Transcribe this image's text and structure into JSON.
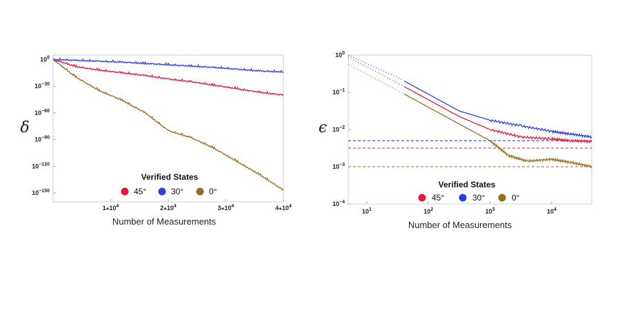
{
  "chart_data": [
    {
      "type": "line",
      "ylabel": "δ",
      "xlabel": "Number of Measurements",
      "yscale": "log",
      "ylim_exp": [
        -160,
        5
      ],
      "xlim": [
        0,
        40000
      ],
      "x_ticks": [
        {
          "value": 10000,
          "mant": "1⁎10",
          "exp": "4"
        },
        {
          "value": 20000,
          "mant": "2⁎10",
          "exp": "4"
        },
        {
          "value": 30000,
          "mant": "3⁎10",
          "exp": "4"
        },
        {
          "value": 40000,
          "mant": "4⁎10",
          "exp": "4"
        }
      ],
      "y_ticks": [
        {
          "exp_value": 0,
          "base": "10",
          "exp": "0"
        },
        {
          "exp_value": -30,
          "base": "10",
          "exp": "−30"
        },
        {
          "exp_value": -60,
          "base": "10",
          "exp": "−60"
        },
        {
          "exp_value": -90,
          "base": "10",
          "exp": "−90"
        },
        {
          "exp_value": -120,
          "base": "10",
          "exp": "−120"
        },
        {
          "exp_value": -150,
          "base": "10",
          "exp": "−150"
        }
      ],
      "series": [
        {
          "name": "45°",
          "color": "#e8163a",
          "x": [
            0,
            4000,
            8000,
            12000,
            16000,
            20000,
            24000,
            28000,
            32000,
            36000,
            40000
          ],
          "log10_y": [
            0,
            -8,
            -12,
            -15,
            -18,
            -22,
            -25,
            -29,
            -33,
            -37,
            -40
          ]
        },
        {
          "name": "30°",
          "color": "#2b3de0",
          "x": [
            0,
            4000,
            8000,
            12000,
            16000,
            20000,
            24000,
            28000,
            32000,
            36000,
            40000
          ],
          "log10_y": [
            0,
            -1,
            -2,
            -3,
            -4.5,
            -6,
            -7.5,
            -9,
            -11,
            -13,
            -14
          ]
        },
        {
          "name": "0°",
          "color": "#9a6a22",
          "x": [
            0,
            4000,
            8000,
            12000,
            16000,
            20000,
            24000,
            28000,
            32000,
            36000,
            40000
          ],
          "log10_y": [
            0,
            -20,
            -35,
            -46,
            -60,
            -80,
            -88,
            -100,
            -115,
            -130,
            -147
          ]
        }
      ],
      "legend": {
        "title": "Verified States",
        "labels": [
          "45°",
          "30°",
          "0°"
        ]
      }
    },
    {
      "type": "line",
      "ylabel": "ϵ",
      "xlabel": "Number of Measurements",
      "xscale": "log",
      "yscale": "log",
      "xlim_exp": [
        0.7,
        4.65
      ],
      "ylim_exp": [
        -4,
        0
      ],
      "x_ticks": [
        {
          "exp_value": 1,
          "base": "10",
          "exp": "1"
        },
        {
          "exp_value": 2,
          "base": "10",
          "exp": "2"
        },
        {
          "exp_value": 3,
          "base": "10",
          "exp": "3"
        },
        {
          "exp_value": 4,
          "base": "10",
          "exp": "4"
        }
      ],
      "y_ticks": [
        {
          "exp_value": 0,
          "base": "10",
          "exp": "0"
        },
        {
          "exp_value": -1,
          "base": "10",
          "exp": "−1"
        },
        {
          "exp_value": -2,
          "base": "10",
          "exp": "−2"
        },
        {
          "exp_value": -3,
          "base": "10",
          "exp": "−3"
        },
        {
          "exp_value": -4,
          "base": "10",
          "exp": "−4"
        }
      ],
      "series": [
        {
          "name": "45°",
          "color": "#e8163a",
          "log10_x": [
            0.7,
            1.5,
            2.0,
            2.5,
            3.0,
            3.5,
            4.0,
            4.3,
            4.65
          ],
          "log10_y": [
            -0.05,
            -0.75,
            -1.2,
            -1.65,
            -2.0,
            -2.2,
            -2.25,
            -2.3,
            -2.32
          ]
        },
        {
          "name": "30°",
          "color": "#2b3de0",
          "log10_x": [
            0.7,
            1.5,
            2.0,
            2.5,
            3.0,
            3.5,
            4.0,
            4.3,
            4.65
          ],
          "log10_y": [
            0.0,
            -0.6,
            -1.05,
            -1.5,
            -1.75,
            -1.9,
            -2.05,
            -2.12,
            -2.2
          ]
        },
        {
          "name": "0°",
          "color": "#9a6a22",
          "log10_x": [
            0.7,
            1.5,
            2.0,
            2.5,
            3.0,
            3.3,
            3.6,
            4.0,
            4.3,
            4.65
          ],
          "log10_y": [
            -0.25,
            -0.95,
            -1.4,
            -1.85,
            -2.3,
            -2.7,
            -2.85,
            -2.8,
            -2.88,
            -3.0
          ]
        }
      ],
      "reference_lines": [
        {
          "series": "30°",
          "color": "#2b3de0",
          "log10_y": -2.3
        },
        {
          "series": "45°",
          "color": "#e8163a",
          "log10_y": -2.5
        },
        {
          "series": "0°",
          "color": "#9a6a22",
          "log10_y": -3.0
        }
      ],
      "legend": {
        "title": "Verified States",
        "labels": [
          "45°",
          "30°",
          "0°"
        ]
      }
    }
  ]
}
